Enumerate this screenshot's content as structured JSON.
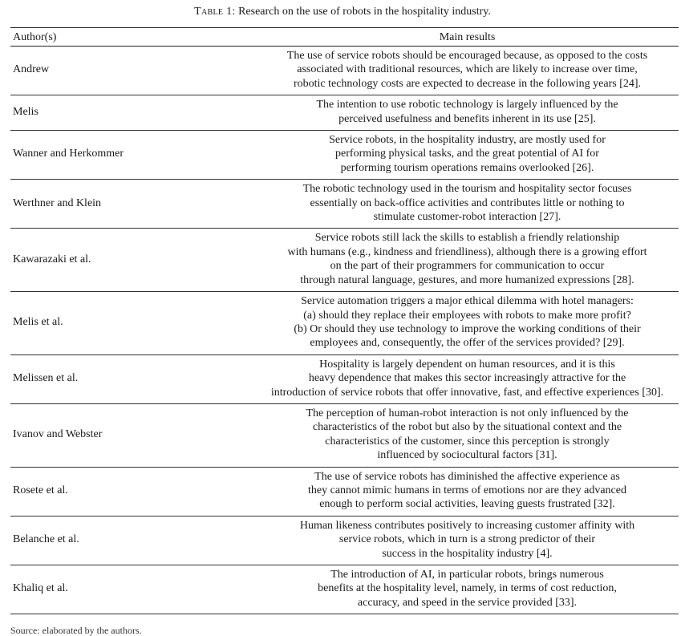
{
  "caption": {
    "label": "Table 1:",
    "text": "Research on the use of robots in the hospitality industry."
  },
  "table": {
    "headers": {
      "author": "Author(s)",
      "results": "Main results"
    },
    "rows": [
      {
        "author": "Andrew",
        "results": [
          "The use of service robots should be encouraged because, as opposed to the costs",
          "associated with traditional resources, which are likely to increase over time,",
          "robotic technology costs are expected to decrease in the following years [24]."
        ]
      },
      {
        "author": "Melis",
        "results": [
          "The intention to use robotic technology is largely influenced by the",
          "perceived usefulness and benefits inherent in its use [25]."
        ]
      },
      {
        "author": "Wanner and Herkommer",
        "results": [
          "Service robots, in the hospitality industry, are mostly used for",
          "performing physical tasks, and the great potential of AI for",
          "performing tourism operations remains overlooked [26]."
        ]
      },
      {
        "author": "Werthner and Klein",
        "results": [
          "The robotic technology used in the tourism and hospitality sector focuses",
          "essentially on back-office activities and contributes little or nothing to",
          "stimulate customer-robot interaction [27]."
        ]
      },
      {
        "author": "Kawarazaki et al.",
        "results": [
          "Service robots still lack the skills to establish a friendly relationship",
          "with humans (e.g., kindness and friendliness), although there is a growing effort",
          "on the part of their programmers for communication to occur",
          "through natural language, gestures, and more humanized expressions [28]."
        ]
      },
      {
        "author": "Melis et al.",
        "results": [
          "Service automation triggers a major ethical dilemma with hotel managers:",
          "(a) should they replace their employees with robots to make more profit?",
          "(b) Or should they use technology to improve the working conditions of their",
          "employees and, consequently, the offer of the services provided? [29]."
        ]
      },
      {
        "author": "Melissen et al.",
        "results": [
          "Hospitality is largely dependent on human resources, and it is this",
          "heavy dependence that makes this sector increasingly attractive for the",
          "introduction of service robots that offer innovative, fast, and effective experiences [30]."
        ]
      },
      {
        "author": "Ivanov and Webster",
        "results": [
          "The perception of human-robot interaction is not only influenced by the",
          "characteristics of the robot but also by the situational context and the",
          "characteristics of the customer, since this perception is strongly",
          "influenced by sociocultural factors [31]."
        ]
      },
      {
        "author": "Rosete et al.",
        "results": [
          "The use of service robots has diminished the affective experience as",
          "they cannot mimic humans in terms of emotions nor are they advanced",
          "enough to perform social activities, leaving guests frustrated [32]."
        ]
      },
      {
        "author": "Belanche et al.",
        "results": [
          "Human likeness contributes positively to increasing customer affinity with",
          "service robots, which in turn is a strong predictor of their",
          "success in the hospitality industry [4]."
        ]
      },
      {
        "author": "Khaliq et al.",
        "results": [
          "The introduction of AI, in particular robots, brings numerous",
          "benefits at the hospitality level, namely, in terms of cost reduction,",
          "accuracy, and speed in the service provided [33]."
        ]
      }
    ]
  },
  "footnote": "Source: elaborated by the authors."
}
